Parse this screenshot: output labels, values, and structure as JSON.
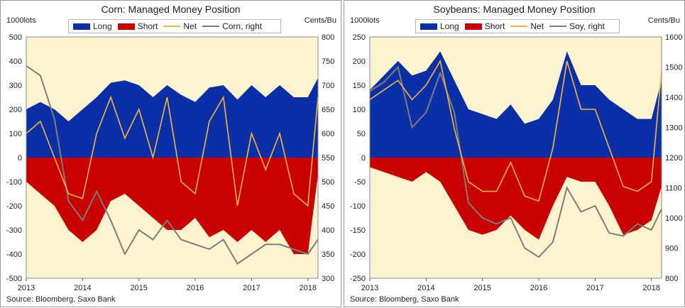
{
  "colors": {
    "plot_bg": "#fdf3cf",
    "long": "#0a2fa6",
    "short": "#c80000",
    "net": "#f5b83a",
    "price": "#7c7c7c"
  },
  "chart_data": [
    {
      "type": "area",
      "title": "Corn: Managed Money Position",
      "ylabel_left": "1000lots",
      "ylabel_right": "Cents/Bu",
      "source": "Source: Bloomberg, Saxo Bank",
      "legend": [
        "Long",
        "Short",
        "Net",
        "Corn, right"
      ],
      "xlim": [
        2013.0,
        2018.18
      ],
      "x_ticks": [
        "2013",
        "2014",
        "2015",
        "2016",
        "2017",
        "2018"
      ],
      "ylim_left": [
        -500,
        500
      ],
      "y_ticks_left": [
        "500",
        "400",
        "300",
        "200",
        "100",
        "0",
        "-100",
        "-200",
        "-300",
        "-400",
        "-500"
      ],
      "ylim_right": [
        300,
        800
      ],
      "y_ticks_right": [
        "800",
        "750",
        "700",
        "650",
        "600",
        "550",
        "500",
        "450",
        "400",
        "350",
        "300"
      ],
      "x": [
        2013.0,
        2013.25,
        2013.5,
        2013.75,
        2014.0,
        2014.25,
        2014.5,
        2014.75,
        2015.0,
        2015.25,
        2015.5,
        2015.75,
        2016.0,
        2016.25,
        2016.5,
        2016.75,
        2017.0,
        2017.25,
        2017.5,
        2017.75,
        2018.0,
        2018.18
      ],
      "series": [
        {
          "name": "Long",
          "axis": "left",
          "values": [
            200,
            230,
            200,
            150,
            200,
            250,
            310,
            320,
            300,
            250,
            300,
            260,
            230,
            290,
            300,
            240,
            300,
            250,
            300,
            250,
            250,
            330
          ]
        },
        {
          "name": "Short",
          "axis": "left",
          "values": [
            -100,
            -150,
            -200,
            -300,
            -350,
            -300,
            -180,
            -150,
            -200,
            -250,
            -300,
            -300,
            -250,
            -330,
            -300,
            -350,
            -300,
            -350,
            -300,
            -400,
            -400,
            -70
          ]
        },
        {
          "name": "Net",
          "axis": "left",
          "values": [
            100,
            150,
            0,
            -150,
            -170,
            100,
            250,
            80,
            200,
            0,
            250,
            -100,
            -150,
            150,
            250,
            -200,
            100,
            -50,
            100,
            -150,
            -200,
            250
          ]
        },
        {
          "name": "Corn, right",
          "axis": "right",
          "values": [
            740,
            720,
            630,
            460,
            420,
            480,
            420,
            350,
            400,
            380,
            420,
            380,
            370,
            360,
            380,
            330,
            350,
            370,
            370,
            360,
            350,
            380
          ]
        }
      ]
    },
    {
      "type": "area",
      "title": "Soybeans: Managed Money Position",
      "ylabel_left": "1000lots",
      "ylabel_right": "Cents/Bu",
      "source": "Source: Bloomberg, Saxo Bank",
      "legend": [
        "Long",
        "Short",
        "Net",
        "Soy, right"
      ],
      "xlim": [
        2013.0,
        2018.18
      ],
      "x_ticks": [
        "2013",
        "2014",
        "2015",
        "2016",
        "2017",
        "2018"
      ],
      "ylim_left": [
        -250,
        250
      ],
      "y_ticks_left": [
        "250",
        "200",
        "150",
        "100",
        "50",
        "0",
        "-50",
        "-100",
        "-150",
        "-200",
        "-250"
      ],
      "ylim_right": [
        800,
        1600
      ],
      "y_ticks_right": [
        "1600",
        "1500",
        "1400",
        "1300",
        "1200",
        "1100",
        "1000",
        "900",
        "800"
      ],
      "x": [
        2013.0,
        2013.25,
        2013.5,
        2013.75,
        2014.0,
        2014.25,
        2014.5,
        2014.75,
        2015.0,
        2015.25,
        2015.5,
        2015.75,
        2016.0,
        2016.25,
        2016.5,
        2016.75,
        2017.0,
        2017.25,
        2017.5,
        2017.75,
        2018.0,
        2018.18
      ],
      "series": [
        {
          "name": "Long",
          "axis": "left",
          "values": [
            140,
            170,
            200,
            170,
            180,
            220,
            160,
            100,
            90,
            80,
            110,
            70,
            80,
            120,
            220,
            150,
            150,
            120,
            100,
            80,
            80,
            160
          ]
        },
        {
          "name": "Short",
          "axis": "left",
          "values": [
            -20,
            -30,
            -40,
            -50,
            -30,
            -50,
            -100,
            -150,
            -160,
            -150,
            -120,
            -150,
            -170,
            -100,
            -40,
            -50,
            -50,
            -100,
            -160,
            -150,
            -130,
            -60
          ]
        },
        {
          "name": "Net",
          "axis": "left",
          "values": [
            120,
            140,
            160,
            120,
            150,
            200,
            60,
            -50,
            -70,
            -70,
            -10,
            -80,
            -90,
            20,
            200,
            100,
            100,
            20,
            -60,
            -70,
            -50,
            180
          ]
        },
        {
          "name": "Soy, right",
          "axis": "right",
          "values": [
            1420,
            1450,
            1500,
            1300,
            1350,
            1480,
            1350,
            1050,
            1000,
            980,
            1000,
            900,
            870,
            920,
            1100,
            1020,
            1040,
            950,
            940,
            980,
            960,
            1030
          ]
        }
      ]
    }
  ]
}
